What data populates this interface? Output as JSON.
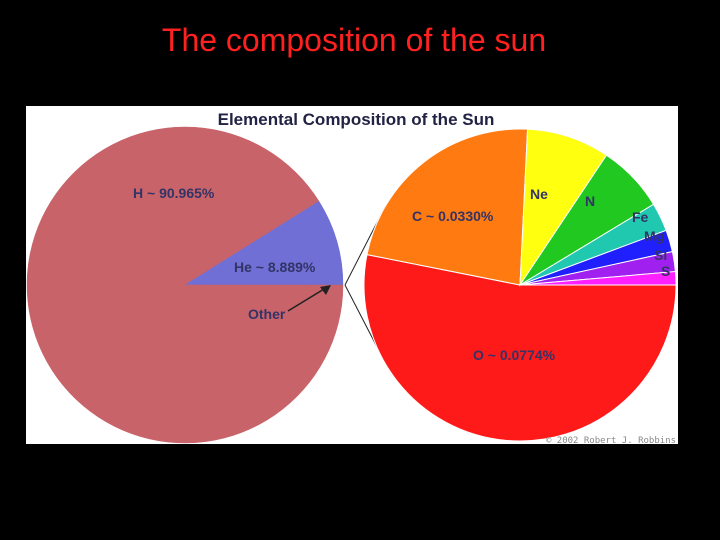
{
  "slide": {
    "title": "The composition of the sun"
  },
  "colors": {
    "background": "#000000",
    "title": "#ff2020",
    "figure_background": "#ffffff",
    "label_text": "#333366"
  },
  "chart_data": [
    {
      "type": "pie",
      "title": "Elemental Composition of the Sun",
      "slices": [
        {
          "label": "H ~ 90.965%",
          "value": 90.965,
          "color": "#c8636a"
        },
        {
          "label": "He ~ 8.889%",
          "value": 8.889,
          "color": "#6f6fd6"
        },
        {
          "label": "Other",
          "value": 0.146,
          "color": "#c8636a"
        }
      ],
      "annotation": "Other"
    },
    {
      "type": "pie",
      "slices": [
        {
          "label": "O ~ 0.0774%",
          "value": 0.0774,
          "color": "#ff1a1a"
        },
        {
          "label": "C ~ 0.0330%",
          "value": 0.033,
          "color": "#ff7a10"
        },
        {
          "label": "Ne",
          "value": 0.0125,
          "color": "#ffff10"
        },
        {
          "label": "N",
          "value": 0.0102,
          "color": "#20c820"
        },
        {
          "label": "Fe",
          "value": 0.0043,
          "color": "#20c8b0"
        },
        {
          "label": "Mg",
          "value": 0.0033,
          "color": "#2020ff"
        },
        {
          "label": "Si",
          "value": 0.003,
          "color": "#a020f0"
        },
        {
          "label": "S",
          "value": 0.002,
          "color": "#ff20ff"
        }
      ]
    }
  ],
  "credit": "© 2002 Robert J. Robbins"
}
